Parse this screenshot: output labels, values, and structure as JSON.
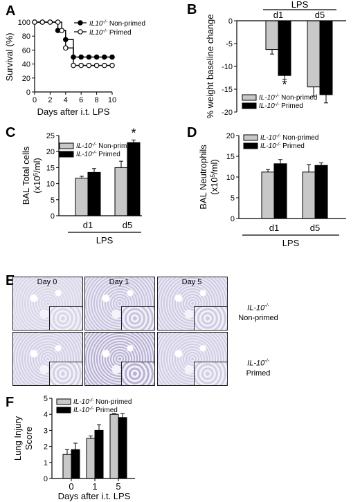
{
  "panels": {
    "A": {
      "letter": "A",
      "chart_data": {
        "type": "line",
        "step": true,
        "xlabel": "Days after i.t. LPS",
        "ylabel": "Survival (%)",
        "xlim": [
          0,
          10
        ],
        "ylim": [
          0,
          100
        ],
        "xticks": [
          0,
          2,
          4,
          6,
          8,
          10
        ],
        "yticks": [
          0,
          20,
          40,
          60,
          80,
          100
        ],
        "series": [
          {
            "name": "IL10-/- Non-primed",
            "marker": "filled-circle",
            "x": [
              0,
              1,
              2,
              3,
              4,
              5,
              6,
              7,
              8,
              9,
              10
            ],
            "y": [
              100,
              100,
              100,
              88,
              75,
              50,
              50,
              50,
              50,
              50,
              50
            ]
          },
          {
            "name": "IL10-/- Primed",
            "marker": "open-circle",
            "x": [
              0,
              1,
              2,
              3,
              3.5,
              4,
              5,
              6,
              7,
              8,
              9,
              10
            ],
            "y": [
              100,
              100,
              100,
              100,
              88,
              63,
              38,
              38,
              38,
              38,
              38,
              38
            ]
          }
        ],
        "legend_position": "top-right"
      },
      "legend": [
        {
          "gene": "IL10",
          "sup": "-/-",
          "label": " Non-primed"
        },
        {
          "gene": "IL10",
          "sup": "-/-",
          "label": " Primed"
        }
      ]
    },
    "B": {
      "letter": "B",
      "top_label": "LPS",
      "chart_data": {
        "type": "bar",
        "categories": [
          "d1",
          "d5"
        ],
        "ylabel": "% weight baseline change",
        "ylim": [
          -20,
          0
        ],
        "yticks": [
          0,
          -5,
          -10,
          -15,
          -20
        ],
        "series": [
          {
            "name": "IL-10-/- Non-primed",
            "color": "#c8c8c8",
            "values": [
              -6.3,
              -14.5
            ],
            "errors": [
              1.0,
              2.0
            ]
          },
          {
            "name": "IL-10-/- Primed",
            "color": "#000000",
            "values": [
              -12.0,
              -16.2
            ],
            "errors": [
              0.8,
              1.8
            ]
          }
        ],
        "significance": [
          {
            "category": "d1",
            "series": 1,
            "mark": "*"
          }
        ],
        "legend_position": "bottom-left"
      },
      "legend": [
        {
          "gene": "IL-10",
          "sup": "-/-",
          "label": " Non-primed"
        },
        {
          "gene": "IL-10",
          "sup": "-/-",
          "label": " Primed"
        }
      ]
    },
    "C": {
      "letter": "C",
      "bottom_label": "LPS",
      "ylabel_line1": "BAL Total cells",
      "ylabel_line2_pre": "(x10",
      "ylabel_line2_sup": "5",
      "ylabel_line2_post": "/ml)",
      "chart_data": {
        "type": "bar",
        "categories": [
          "d1",
          "d5"
        ],
        "ylim": [
          0,
          25
        ],
        "yticks": [
          0,
          5,
          10,
          15,
          20,
          25
        ],
        "series": [
          {
            "name": "IL-10-/- Non-primed",
            "color": "#c8c8c8",
            "values": [
              11.7,
              15.0
            ],
            "errors": [
              0.6,
              2.0
            ]
          },
          {
            "name": "IL-10-/- Primed",
            "color": "#000000",
            "values": [
              13.5,
              22.8
            ],
            "errors": [
              1.2,
              0.8
            ]
          }
        ],
        "significance": [
          {
            "category": "d5",
            "series": 1,
            "mark": "*"
          }
        ],
        "legend_position": "top-left"
      },
      "legend": [
        {
          "gene": "IL-10",
          "sup": "-/-",
          "label": " Non-primed"
        },
        {
          "gene": "IL-10",
          "sup": "-/-",
          "label": " Primed"
        }
      ]
    },
    "D": {
      "letter": "D",
      "bottom_label": "LPS",
      "ylabel_line1": "BAL Neutrophils",
      "ylabel_line2_pre": "(x10",
      "ylabel_line2_sup": "5",
      "ylabel_line2_post": "/ml)",
      "chart_data": {
        "type": "bar",
        "categories": [
          "d1",
          "d5"
        ],
        "ylim": [
          0,
          20
        ],
        "yticks": [
          0,
          5,
          10,
          15,
          20
        ],
        "series": [
          {
            "name": "IL-10-/- Non-primed",
            "color": "#c8c8c8",
            "values": [
              11.2,
              11.2
            ],
            "errors": [
              0.6,
              1.8
            ]
          },
          {
            "name": "IL-10-/- Primed",
            "color": "#000000",
            "values": [
              13.2,
              12.8
            ],
            "errors": [
              1.0,
              0.6
            ]
          }
        ],
        "legend_position": "top-left"
      },
      "legend": [
        {
          "gene": "IL-10",
          "sup": "-/-",
          "label": " Non-primed"
        },
        {
          "gene": "IL-10",
          "sup": "-/-",
          "label": " Primed"
        }
      ]
    },
    "E": {
      "letter": "E",
      "days": [
        "Day 0",
        "Day 1",
        "Day 5"
      ],
      "rows": [
        {
          "gene": "IL-10",
          "sup": "-/-",
          "label": "Non-primed"
        },
        {
          "gene": "IL-10",
          "sup": "-/-",
          "label": "Primed"
        }
      ]
    },
    "F": {
      "letter": "F",
      "ylabel_line1": "Lung Injury",
      "ylabel_line2": "Score",
      "chart_data": {
        "type": "bar",
        "categories": [
          "0",
          "1",
          "5"
        ],
        "xlabel": "Days after i.t. LPS",
        "ylim": [
          0,
          5
        ],
        "yticks": [
          0,
          1,
          2,
          3,
          4,
          5
        ],
        "series": [
          {
            "name": "IL-10-/- Non-primed",
            "color": "#c8c8c8",
            "values": [
              1.5,
              2.5,
              4.0
            ],
            "errors": [
              0.3,
              0.15,
              0.05
            ]
          },
          {
            "name": "IL-10-/- Primed",
            "color": "#000000",
            "values": [
              1.8,
              3.0,
              3.8
            ],
            "errors": [
              0.4,
              0.35,
              0.25
            ]
          }
        ],
        "legend_position": "top-left"
      },
      "legend": [
        {
          "gene": "IL-10",
          "sup": "-/-",
          "label": " Non-primed"
        },
        {
          "gene": "IL-10",
          "sup": "-/-",
          "label": " Primed"
        }
      ]
    }
  }
}
